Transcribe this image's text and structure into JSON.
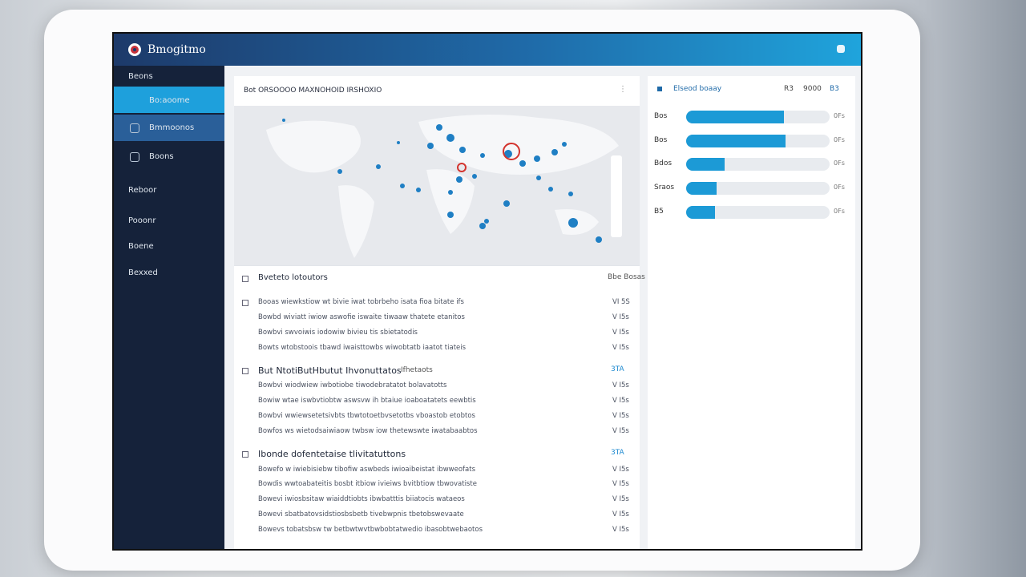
{
  "header": {
    "logo": "Bmogitmo"
  },
  "sidebar": {
    "items": [
      "Beons",
      "Bo:aoome",
      "Bmmoonos",
      "Boons",
      "Reboor",
      "Pooonr",
      "Boene",
      "Bexxed"
    ]
  },
  "map_panel": {
    "title": "Bot ORSOOOO  MAXNOHOID IRSHOXIO"
  },
  "list_panel": {
    "groups": [
      {
        "heading": "Bveteto lotoutors",
        "right": "Bbe Bosas",
        "rows": [
          {
            "text": "Booas wiewkstiow wt bivie iwat tobrbeho isata fioa bitate ifs",
            "value": "VI 5S"
          },
          {
            "text": "Bowbd wiviatt iwiow aswofie iswaite tiwaaw thatete etanitos",
            "value": "V I5s"
          },
          {
            "text": "Bowbvi swvoiwis iodowiw bivieu tis sbietatodis",
            "value": "V I5s"
          },
          {
            "text": "Bowts wtobstoois tbawd iwaisttowbs wiwobtatb iaatot tiateis",
            "value": "V I5s"
          }
        ]
      },
      {
        "heading": "But NtotiButHbutut Ihvonuttatos",
        "sub": "Ifhetaots",
        "right": "3TA",
        "rows": [
          {
            "text": "Bowbvi wiodwiew iwbotiobe tiwodebratatot bolavatotts",
            "value": "V I5s"
          },
          {
            "text": "Bowiw wtae iswbvtiobtw aswsvw ih btaiue ioaboatatets eewbtis",
            "value": "V I5s"
          },
          {
            "text": "Bowbvi wwiewsetetsivbts tbwtotoetbvsetotbs vboastob etobtos",
            "value": "V I5s"
          },
          {
            "text": "Bowfos ws wietodsaiwiaow twbsw iow thetewswte iwatabaabtos",
            "value": "V I5s"
          }
        ]
      },
      {
        "heading": "Ibonde dofentetaise tlivitatuttons",
        "right": "3TA",
        "rows": [
          {
            "text": "Bowefo w iwiebisiebw tibofiw aswbeds iwioaibeistat ibwweofats",
            "value": "V I5s"
          },
          {
            "text": "Bowdis wwtoabateitis bosbt itbiow ivieiws bvitbtiow tbwovatiste",
            "value": "V I5s"
          },
          {
            "text": "Bowevi iwiosbsitaw wiaiddtiobts ibwbatttis biiatocis wataeos",
            "value": "V I5s"
          },
          {
            "text": "Bowevi sbatbatovsidstiosbsbetb tivebwpnis tbetobswevaate",
            "value": "V I5s"
          },
          {
            "text": "Bowevs tobatsbsw tw betbwtwvtbwbobtatwedio ibasobtwebaotos",
            "value": "V I5s"
          }
        ]
      }
    ]
  },
  "stats_panel": {
    "title": "Elseod boaay",
    "cols": [
      "R3",
      "9000",
      "B3"
    ],
    "bars": [
      {
        "label": "Bos",
        "value": 68,
        "tag": "0Fs"
      },
      {
        "label": "Bos",
        "value": 69,
        "tag": "0Fs"
      },
      {
        "label": "Bdos",
        "value": 27,
        "tag": "0Fs"
      },
      {
        "label": "Sraos",
        "value": 21,
        "tag": "0Fs"
      },
      {
        "label": "B5",
        "value": 20,
        "tag": "0Fs"
      }
    ]
  }
}
